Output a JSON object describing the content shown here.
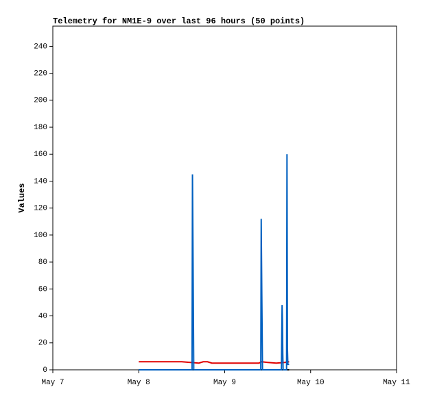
{
  "chart_data": {
    "type": "line",
    "title": "Telemetry for NM1E-9 over last 96 hours (50 points)",
    "y_label": "Values",
    "xlim": [
      0,
      4
    ],
    "xticks": [
      {
        "value": 0,
        "label": "May 7"
      },
      {
        "value": 1,
        "label": "May 8"
      },
      {
        "value": 2,
        "label": "May 9"
      },
      {
        "value": 3,
        "label": "May 10"
      },
      {
        "value": 4,
        "label": "May 11"
      }
    ],
    "ylim": [
      0,
      255
    ],
    "yticks": [
      0,
      20,
      40,
      60,
      80,
      100,
      120,
      140,
      160,
      180,
      200,
      220,
      240
    ],
    "grid": false,
    "series": [
      {
        "color": "#000000",
        "x": [
          1.0,
          2.75
        ],
        "values": [
          0,
          0
        ]
      },
      {
        "color": "#e00000",
        "x": [
          1.0,
          1.5,
          1.6,
          1.7,
          1.75,
          1.8,
          1.85,
          2.4,
          2.43,
          2.5,
          2.6,
          2.7,
          2.75
        ],
        "values": [
          6,
          6,
          5.5,
          5,
          6,
          6,
          5,
          5,
          6,
          5.5,
          5,
          5.5,
          6
        ]
      },
      {
        "color": "#0060c0",
        "x": [
          1.0,
          1.62,
          1.625,
          1.632,
          1.64,
          2.42,
          2.425,
          2.432,
          2.44,
          2.66,
          2.664,
          2.668,
          2.672,
          2.676,
          2.68,
          2.72,
          2.725,
          2.73,
          2.735,
          2.75
        ],
        "values": [
          0,
          0,
          145,
          80,
          0,
          0,
          112,
          56,
          0,
          0,
          25,
          48,
          36,
          12,
          0,
          0,
          160,
          16,
          4,
          4
        ]
      }
    ]
  }
}
